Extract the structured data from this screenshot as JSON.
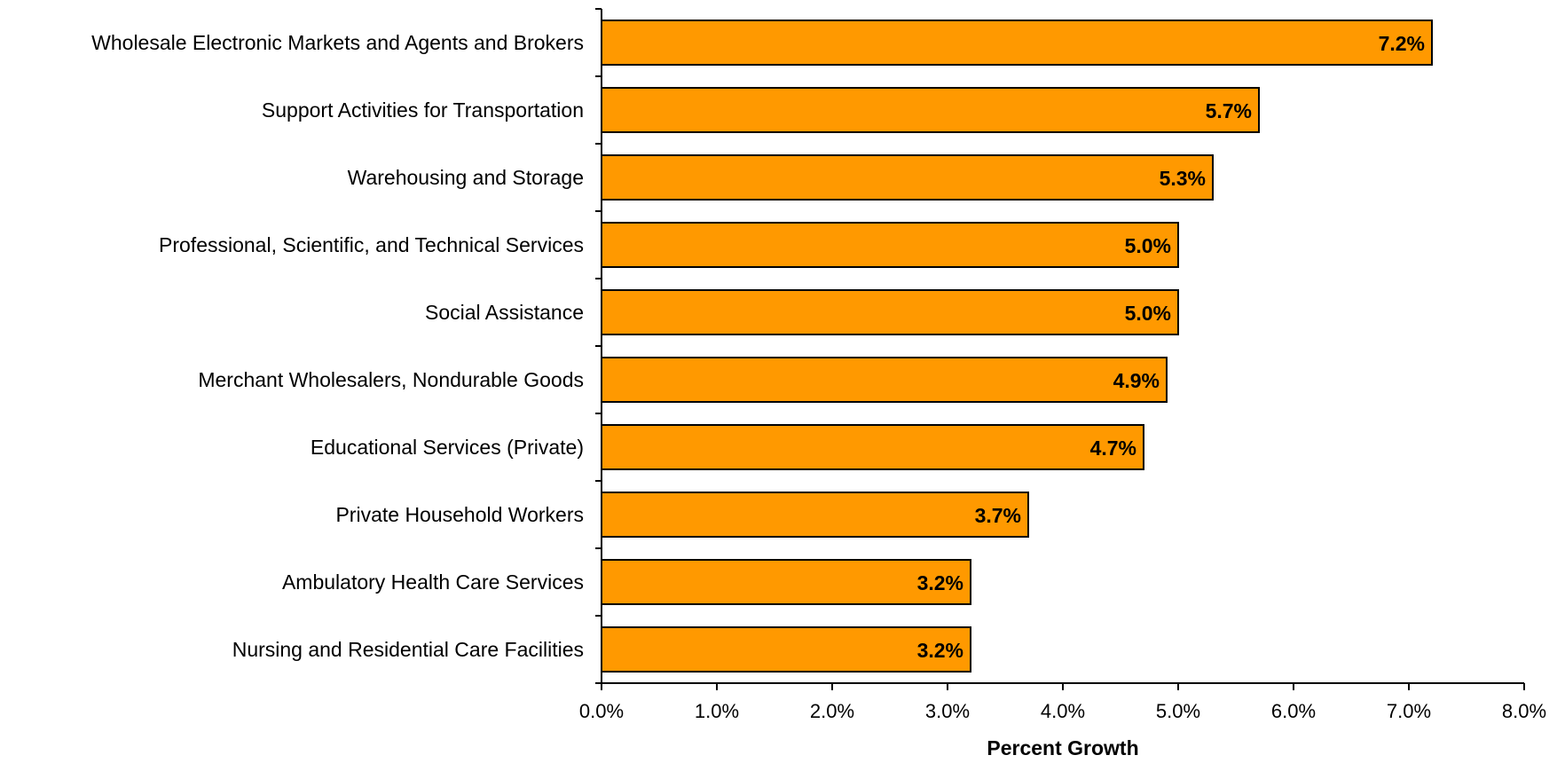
{
  "chart_data": {
    "type": "bar",
    "orientation": "horizontal",
    "title": "",
    "xlabel": "Percent Growth",
    "ylabel": "",
    "xlim": [
      0,
      8
    ],
    "x_tick_values": [
      0,
      1,
      2,
      3,
      4,
      5,
      6,
      7,
      8
    ],
    "x_tick_labels": [
      "0.0%",
      "1.0%",
      "2.0%",
      "3.0%",
      "4.0%",
      "5.0%",
      "6.0%",
      "7.0%",
      "8.0%"
    ],
    "grid": false,
    "legend": "none",
    "bar_color": "#FF9900",
    "bar_edge_color": "#000000",
    "categories": [
      "Wholesale Electronic Markets and Agents and Brokers",
      "Support Activities for Transportation",
      "Warehousing and Storage",
      "Professional, Scientific, and Technical Services",
      "Social Assistance",
      "Merchant Wholesalers, Nondurable Goods",
      "Educational Services (Private)",
      "Private Household Workers",
      "Ambulatory Health Care Services",
      "Nursing and Residential Care Facilities"
    ],
    "values": [
      7.2,
      5.7,
      5.3,
      5.0,
      5.0,
      4.9,
      4.7,
      3.7,
      3.2,
      3.2
    ],
    "value_labels": [
      "7.2%",
      "5.7%",
      "5.3%",
      "5.0%",
      "5.0%",
      "4.9%",
      "4.7%",
      "3.7%",
      "3.2%",
      "3.2%"
    ]
  }
}
